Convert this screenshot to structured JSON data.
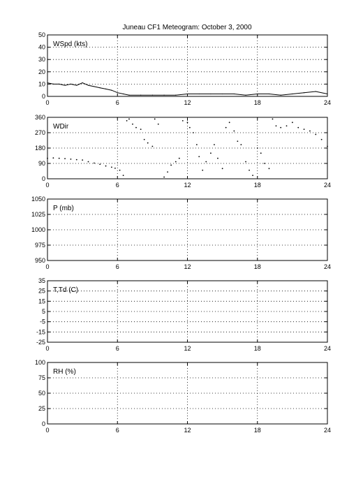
{
  "title": "Juneau CF1 Meteogram:   October  3, 2000",
  "chart_data": [
    {
      "type": "line",
      "id": "wspd",
      "label": "WSpd (kts)",
      "xlim": [
        0,
        24
      ],
      "ylim": [
        0,
        50
      ],
      "xticks": [
        0,
        6,
        12,
        18,
        24
      ],
      "yticks": [
        0,
        10,
        20,
        30,
        40,
        50
      ],
      "grid": true,
      "series": [
        {
          "x": [
            0,
            0.5,
            1,
            1.5,
            2,
            2.5,
            3,
            3.5,
            4,
            4.5,
            5,
            5.5,
            6,
            6.5,
            7,
            8,
            9,
            10,
            11,
            12,
            13,
            14,
            15,
            16,
            17,
            18,
            19,
            20,
            21,
            22,
            23,
            24
          ],
          "values": [
            11,
            10,
            10,
            9,
            10,
            9,
            11,
            9,
            8,
            7,
            6,
            5,
            3,
            2,
            1,
            1,
            1,
            1,
            1,
            2,
            2,
            2,
            2,
            2,
            1,
            2,
            2,
            1,
            2,
            3,
            4,
            2
          ]
        }
      ]
    },
    {
      "type": "scatter",
      "id": "wdir",
      "label": "WDir",
      "xlim": [
        0,
        24
      ],
      "ylim": [
        0,
        360
      ],
      "xticks": [
        0,
        6,
        12,
        18,
        24
      ],
      "yticks": [
        0,
        90,
        180,
        270,
        360
      ],
      "grid": true,
      "series": [
        {
          "x": [
            0,
            0.5,
            1,
            1.5,
            2,
            2.5,
            3,
            3.5,
            4,
            4.5,
            5,
            5.5,
            5.8,
            6.2,
            6.5,
            6.8,
            7,
            7.3,
            7.6,
            8,
            8.3,
            8.6,
            9,
            9.2,
            9.5,
            10,
            10.3,
            10.6,
            11,
            11.3,
            11.6,
            12,
            12.2,
            12.5,
            12.8,
            13,
            13.3,
            13.6,
            14,
            14.3,
            14.6,
            15,
            15.3,
            15.6,
            16,
            16.3,
            16.6,
            17,
            17.3,
            17.6,
            18,
            18.3,
            18.6,
            19,
            19.3,
            19.6,
            20,
            20.5,
            21,
            21.5,
            22,
            22.5,
            23,
            23.5,
            24
          ],
          "values": [
            120,
            122,
            120,
            118,
            115,
            112,
            110,
            100,
            92,
            85,
            75,
            68,
            62,
            50,
            20,
            340,
            350,
            320,
            300,
            290,
            230,
            210,
            190,
            350,
            320,
            10,
            40,
            80,
            100,
            120,
            340,
            330,
            300,
            270,
            200,
            130,
            50,
            100,
            150,
            200,
            120,
            60,
            300,
            330,
            280,
            220,
            200,
            100,
            50,
            20,
            180,
            150,
            90,
            60,
            350,
            310,
            300,
            310,
            330,
            300,
            290,
            280,
            260,
            230,
            190
          ]
        }
      ]
    },
    {
      "type": "line",
      "id": "pres",
      "label": "P (mb)",
      "xlim": [
        0,
        24
      ],
      "ylim": [
        950,
        1050
      ],
      "xticks": [
        0,
        6,
        12,
        18,
        24
      ],
      "yticks": [
        950,
        975,
        1000,
        1025,
        1050
      ],
      "grid": true,
      "series": []
    },
    {
      "type": "line",
      "id": "temp",
      "label": "T,Td (C)",
      "xlim": [
        0,
        24
      ],
      "ylim": [
        -25,
        35
      ],
      "xticks": [
        0,
        6,
        12,
        18,
        24
      ],
      "yticks": [
        -25,
        -15,
        -5,
        5,
        15,
        25,
        35
      ],
      "ytick_labels": [
        "-25",
        "-15",
        "-5",
        "5",
        "15",
        "25",
        "35"
      ],
      "grid": true,
      "series": []
    },
    {
      "type": "line",
      "id": "rh",
      "label": "RH (%)",
      "xlim": [
        0,
        24
      ],
      "ylim": [
        0,
        100
      ],
      "xticks": [
        0,
        6,
        12,
        18,
        24
      ],
      "yticks": [
        0,
        25,
        50,
        75,
        100
      ],
      "grid": true,
      "series": []
    }
  ]
}
